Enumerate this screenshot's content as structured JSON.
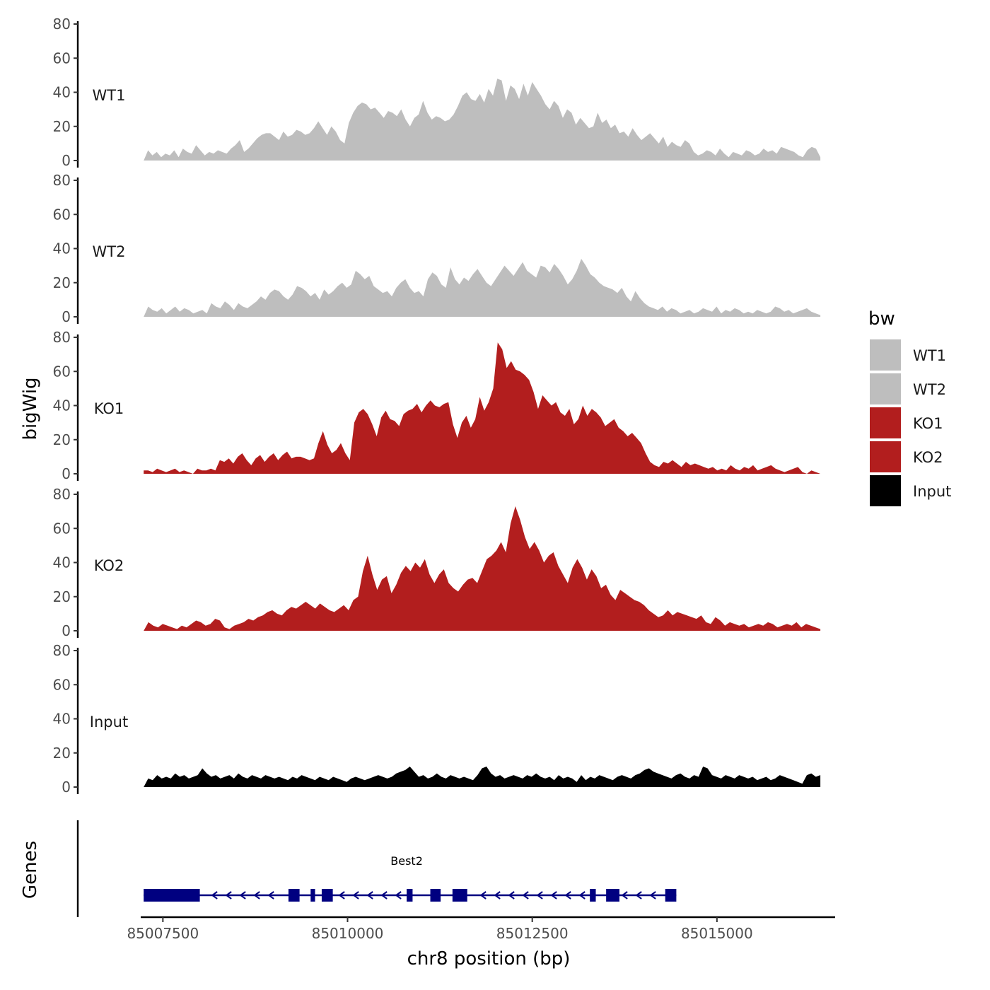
{
  "chart_data": {
    "type": "area",
    "y_axis_title": "bigWig",
    "genes_axis_title": "Genes",
    "x_axis_title": "chr8 position (bp)",
    "xlim": [
      85007200,
      85016600
    ],
    "x_ticks": [
      85007500,
      85010000,
      85012500,
      85015000
    ],
    "x_tick_labels": [
      "85007500",
      "85010000",
      "85012500",
      "85015000"
    ],
    "ylim": [
      0,
      80
    ],
    "y_ticks": [
      0,
      20,
      40,
      60,
      80
    ],
    "y_tick_labels": [
      "0",
      "20",
      "40",
      "60",
      "80"
    ],
    "x_start": 85007240,
    "x_end": 85016400,
    "tracks": [
      {
        "name": "WT1",
        "color": "#bebebe",
        "label": "WT1",
        "values": [
          0,
          6,
          3,
          5,
          2,
          4,
          3,
          6,
          2,
          7,
          5,
          4,
          9,
          6,
          3,
          5,
          4,
          6,
          5,
          4,
          7,
          9,
          12,
          5,
          7,
          10,
          13,
          15,
          16,
          16,
          14,
          12,
          17,
          14,
          15,
          18,
          17,
          15,
          16,
          19,
          23,
          19,
          15,
          20,
          17,
          12,
          10,
          22,
          28,
          32,
          34,
          33,
          30,
          31,
          28,
          25,
          29,
          28,
          26,
          30,
          24,
          20,
          25,
          27,
          35,
          28,
          24,
          26,
          25,
          23,
          24,
          27,
          32,
          38,
          40,
          36,
          35,
          39,
          34,
          42,
          38,
          48,
          47,
          35,
          44,
          42,
          36,
          45,
          38,
          46,
          42,
          38,
          33,
          30,
          35,
          32,
          25,
          30,
          28,
          21,
          25,
          22,
          19,
          20,
          28,
          22,
          24,
          19,
          21,
          16,
          17,
          14,
          19,
          15,
          12,
          14,
          16,
          13,
          10,
          14,
          8,
          11,
          9,
          8,
          12,
          10,
          5,
          3,
          4,
          6,
          5,
          3,
          7,
          4,
          2,
          5,
          4,
          3,
          6,
          5,
          3,
          4,
          7,
          5,
          6,
          4,
          8,
          7,
          6,
          5,
          3,
          2,
          6,
          8,
          7,
          2
        ],
        "raw_values": null
      },
      {
        "name": "WT2",
        "color": "#bebebe",
        "label": "WT2",
        "values": [
          0,
          6,
          4,
          3,
          5,
          2,
          4,
          6,
          3,
          5,
          4,
          2,
          3,
          4,
          2,
          8,
          6,
          5,
          9,
          7,
          4,
          8,
          6,
          5,
          7,
          9,
          12,
          10,
          14,
          16,
          15,
          12,
          10,
          13,
          18,
          17,
          15,
          12,
          14,
          10,
          16,
          13,
          15,
          18,
          20,
          17,
          19,
          27,
          25,
          22,
          24,
          18,
          16,
          14,
          15,
          12,
          17,
          20,
          22,
          17,
          14,
          15,
          12,
          22,
          26,
          24,
          19,
          17,
          29,
          22,
          19,
          23,
          21,
          25,
          28,
          24,
          20,
          18,
          22,
          26,
          30,
          27,
          24,
          28,
          32,
          27,
          25,
          23,
          30,
          29,
          26,
          31,
          28,
          24,
          19,
          22,
          27,
          34,
          30,
          25,
          23,
          20,
          18,
          17,
          16,
          14,
          17,
          12,
          9,
          15,
          11,
          8,
          6,
          5,
          4,
          6,
          3,
          5,
          4,
          2,
          3,
          4,
          2,
          3,
          5,
          4,
          3,
          6,
          2,
          4,
          3,
          5,
          4,
          2,
          3,
          2,
          4,
          3,
          2,
          3,
          6,
          5,
          3,
          4,
          2,
          3,
          4,
          5,
          3,
          2,
          1
        ],
        "raw_values": null
      },
      {
        "name": "KO1",
        "color": "#b21e1e",
        "label": "KO1",
        "values": [
          2,
          2,
          1,
          3,
          2,
          1,
          2,
          3,
          1,
          2,
          1,
          0,
          3,
          2,
          2,
          3,
          2,
          8,
          7,
          9,
          6,
          10,
          12,
          8,
          5,
          9,
          11,
          7,
          10,
          12,
          8,
          11,
          13,
          9,
          10,
          10,
          9,
          8,
          9,
          18,
          25,
          17,
          12,
          14,
          18,
          12,
          8,
          30,
          36,
          38,
          35,
          29,
          22,
          33,
          37,
          32,
          31,
          28,
          35,
          37,
          38,
          41,
          36,
          40,
          43,
          40,
          39,
          41,
          42,
          29,
          21,
          30,
          34,
          27,
          32,
          45,
          37,
          42,
          50,
          77,
          73,
          62,
          66,
          61,
          60,
          58,
          55,
          48,
          38,
          46,
          43,
          40,
          42,
          36,
          34,
          38,
          29,
          32,
          40,
          34,
          38,
          36,
          33,
          28,
          30,
          32,
          27,
          25,
          22,
          24,
          21,
          18,
          12,
          7,
          5,
          4,
          7,
          6,
          8,
          6,
          4,
          7,
          5,
          6,
          5,
          4,
          3,
          4,
          2,
          3,
          2,
          5,
          3,
          2,
          4,
          3,
          5,
          2,
          3,
          4,
          5,
          3,
          2,
          1,
          2,
          3,
          4,
          1,
          0,
          2,
          1,
          0
        ],
        "raw_values": null
      },
      {
        "name": "KO2",
        "color": "#b21e1e",
        "label": "KO2",
        "values": [
          0,
          5,
          3,
          2,
          4,
          3,
          2,
          1,
          3,
          2,
          4,
          6,
          5,
          3,
          4,
          7,
          6,
          2,
          1,
          3,
          4,
          5,
          7,
          6,
          8,
          9,
          11,
          12,
          10,
          9,
          12,
          14,
          13,
          15,
          17,
          15,
          13,
          16,
          14,
          12,
          11,
          13,
          15,
          12,
          18,
          20,
          35,
          44,
          33,
          24,
          30,
          32,
          22,
          27,
          34,
          38,
          35,
          40,
          37,
          42,
          33,
          28,
          33,
          36,
          28,
          25,
          23,
          27,
          30,
          31,
          28,
          35,
          42,
          44,
          47,
          52,
          46,
          63,
          73,
          65,
          55,
          48,
          52,
          47,
          40,
          44,
          46,
          38,
          33,
          28,
          37,
          42,
          37,
          30,
          36,
          32,
          25,
          27,
          21,
          18,
          24,
          22,
          20,
          18,
          17,
          15,
          12,
          10,
          8,
          9,
          12,
          9,
          11,
          10,
          9,
          8,
          7,
          9,
          5,
          4,
          8,
          6,
          3,
          5,
          4,
          3,
          4,
          2,
          3,
          4,
          3,
          5,
          4,
          2,
          3,
          4,
          3,
          5,
          2,
          4,
          3,
          2,
          1
        ],
        "raw_values": null
      },
      {
        "name": "Input",
        "color": "#000000",
        "label": "Input",
        "values": [
          0,
          5,
          4,
          7,
          5,
          6,
          5,
          8,
          6,
          7,
          5,
          6,
          7,
          11,
          8,
          6,
          7,
          5,
          6,
          7,
          5,
          8,
          6,
          5,
          7,
          6,
          5,
          7,
          6,
          5,
          6,
          5,
          4,
          6,
          5,
          7,
          6,
          5,
          4,
          6,
          5,
          4,
          6,
          5,
          4,
          3,
          5,
          6,
          5,
          4,
          5,
          6,
          7,
          6,
          5,
          6,
          8,
          9,
          10,
          12,
          9,
          6,
          7,
          5,
          6,
          8,
          6,
          5,
          7,
          6,
          5,
          6,
          5,
          4,
          7,
          11,
          12,
          8,
          6,
          7,
          5,
          6,
          7,
          6,
          5,
          7,
          6,
          8,
          6,
          5,
          6,
          4,
          7,
          5,
          6,
          5,
          3,
          7,
          4,
          6,
          5,
          7,
          6,
          5,
          4,
          6,
          7,
          6,
          5,
          7,
          8,
          10,
          11,
          9,
          8,
          7,
          6,
          5,
          7,
          8,
          6,
          5,
          7,
          6,
          12,
          11,
          7,
          6,
          5,
          7,
          6,
          5,
          7,
          6,
          5,
          6,
          4,
          5,
          6,
          4,
          5,
          7,
          6,
          5,
          4,
          3,
          2,
          7,
          8,
          6,
          7
        ],
        "raw_values": null
      }
    ],
    "legend": {
      "title": "bw",
      "placement": "right",
      "entries": [
        {
          "label": "WT1",
          "color": "#bebebe"
        },
        {
          "label": "WT2",
          "color": "#bebebe"
        },
        {
          "label": "KO1",
          "color": "#b21e1e"
        },
        {
          "label": "KO2",
          "color": "#b21e1e"
        },
        {
          "label": "Input",
          "color": "#000000"
        }
      ]
    },
    "gene": {
      "name": "Best2",
      "color": "#000080",
      "strand": "-",
      "start": 85007240,
      "end": 85014450,
      "exons": [
        [
          85007240,
          85008000
        ],
        [
          85009200,
          85009350
        ],
        [
          85009500,
          85009560
        ],
        [
          85009650,
          85009800
        ],
        [
          85010800,
          85010880
        ],
        [
          85011120,
          85011260
        ],
        [
          85011420,
          85011620
        ],
        [
          85013280,
          85013360
        ],
        [
          85013500,
          85013680
        ],
        [
          85014300,
          85014450
        ]
      ]
    }
  }
}
